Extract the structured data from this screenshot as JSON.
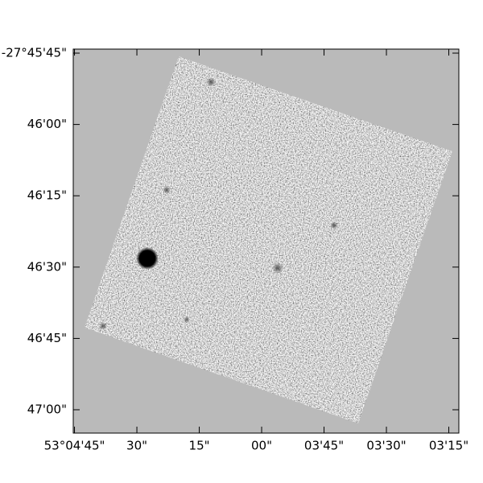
{
  "chart_data": {
    "type": "image",
    "xlim": [
      53.07925,
      53.053495
    ],
    "ylim": [
      -27.784697,
      -27.762265
    ],
    "xticks": [
      {
        "value": 53.079167,
        "label": "53°04'45\""
      },
      {
        "value": 53.075,
        "label": "30\""
      },
      {
        "value": 53.070833,
        "label": "15\""
      },
      {
        "value": 53.066667,
        "label": "00\""
      },
      {
        "value": 53.0625,
        "label": "03'45\""
      },
      {
        "value": 53.058333,
        "label": "03'30\""
      },
      {
        "value": 53.054167,
        "label": "03'15\""
      }
    ],
    "yticks": [
      {
        "value": -27.7625,
        "label": "-27°45'45\""
      },
      {
        "value": -27.766667,
        "label": "46'00\""
      },
      {
        "value": -27.770833,
        "label": "46'15\""
      },
      {
        "value": -27.775,
        "label": "46'30\""
      },
      {
        "value": -27.779167,
        "label": "46'45\""
      },
      {
        "value": -27.783333,
        "label": "47'00\""
      }
    ]
  }
}
